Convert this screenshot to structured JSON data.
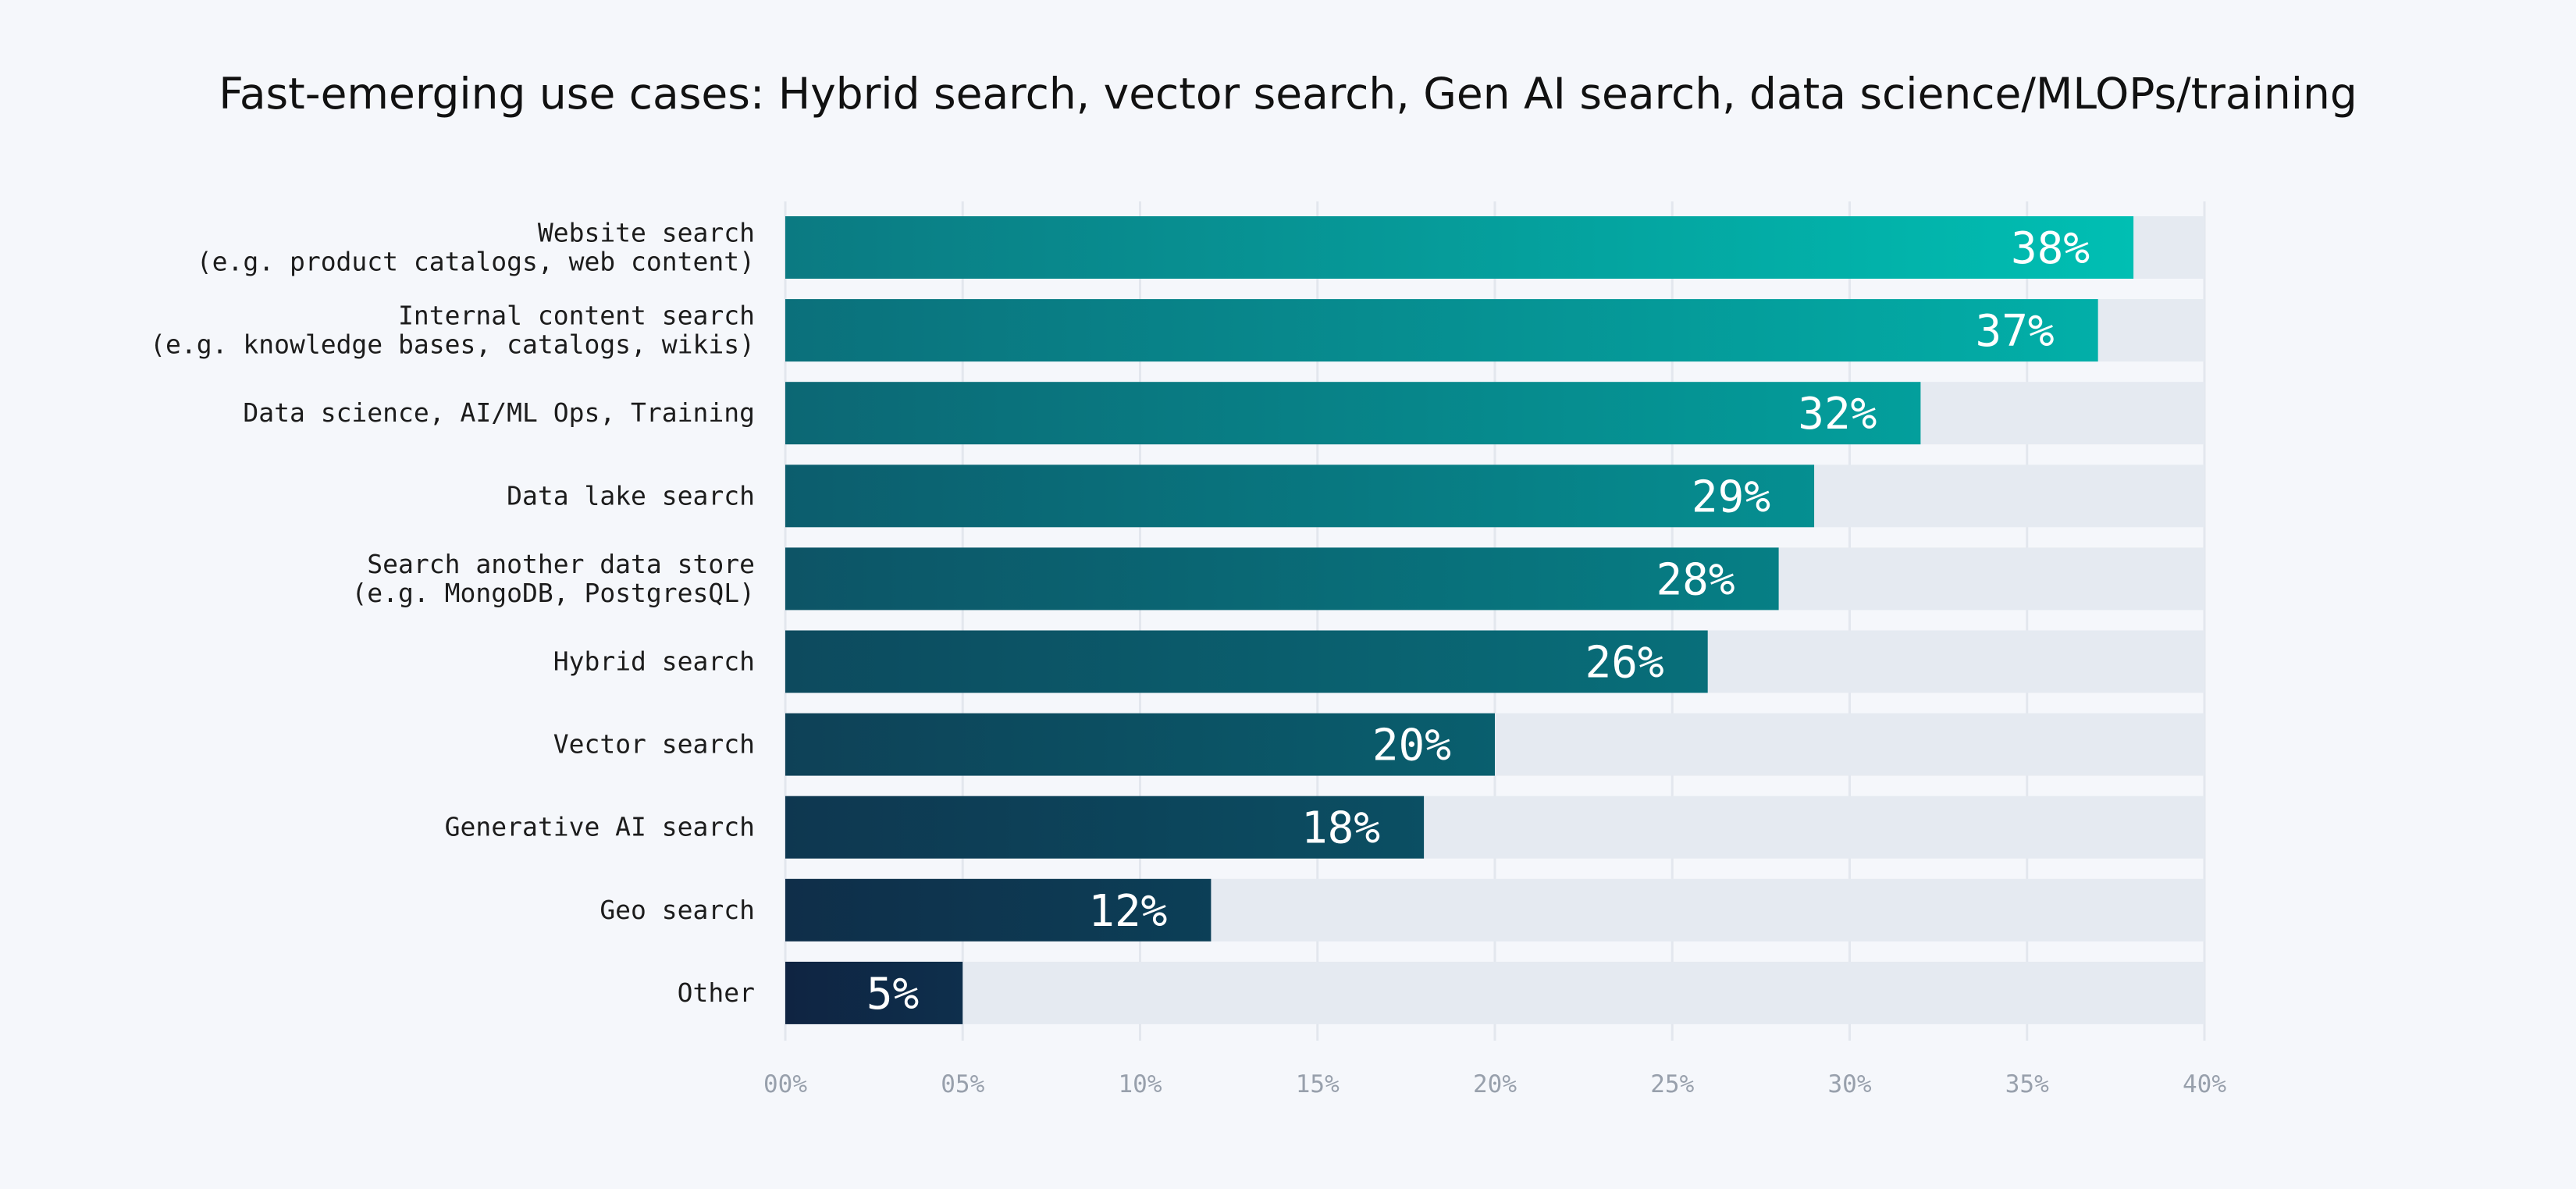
{
  "chart_data": {
    "type": "bar",
    "orientation": "horizontal",
    "title": "Fast-emerging use cases: Hybrid search, vector search, Gen AI search, data science/MLOPs/training",
    "categories": [
      [
        "Website search",
        "(e.g. product catalogs, web content)"
      ],
      [
        "Internal content search",
        "(e.g. knowledge bases, catalogs, wikis)"
      ],
      [
        "Data science, AI/ML Ops, Training"
      ],
      [
        "Data lake search"
      ],
      [
        "Search another data store",
        "(e.g. MongoDB, PostgresQL)"
      ],
      [
        "Hybrid search"
      ],
      [
        "Vector search"
      ],
      [
        "Generative AI search"
      ],
      [
        "Geo search"
      ],
      [
        "Other"
      ]
    ],
    "values": [
      38,
      37,
      32,
      29,
      28,
      26,
      20,
      18,
      12,
      5
    ],
    "value_labels": [
      "38%",
      "37%",
      "32%",
      "29%",
      "28%",
      "26%",
      "20%",
      "18%",
      "12%",
      "5%"
    ],
    "xlim": [
      0,
      40
    ],
    "xticks": [
      0,
      5,
      10,
      15,
      20,
      25,
      30,
      35,
      40
    ],
    "xtick_labels": [
      "00%",
      "05%",
      "10%",
      "15%",
      "20%",
      "25%",
      "30%",
      "35%",
      "40%"
    ],
    "xlabel": "",
    "ylabel": "",
    "grid": true,
    "legend": "none",
    "colors": {
      "background": "#f5f7fb",
      "track": "#e5eaf1",
      "grid": "#e3e7ee",
      "bar_top_bright": "#00bfb3",
      "bar_top_dark": "#0b7a82",
      "bar_bottom_bright": "#0e2f4c",
      "bar_bottom_dark": "#0f2442",
      "value_text": "#ffffff",
      "tick_text": "#98a0ac"
    }
  }
}
